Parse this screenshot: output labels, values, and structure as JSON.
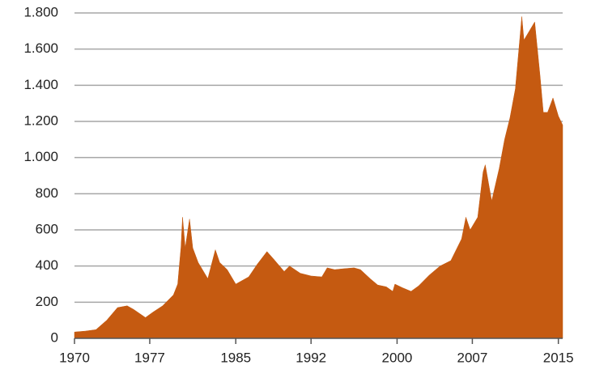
{
  "chart_data": {
    "type": "area",
    "color": "#c55a11",
    "grid": true,
    "x": [
      1970,
      1971,
      1972,
      1973,
      1974,
      1974.9,
      1975.5,
      1976.6,
      1977.3,
      1978.2,
      1979.2,
      1979.6,
      1979.9,
      1980.05,
      1980.3,
      1980.7,
      1981.0,
      1981.5,
      1982.4,
      1983.1,
      1983.5,
      1984.2,
      1985.0,
      1985.6,
      1986.2,
      1987.0,
      1987.9,
      1988.5,
      1989.5,
      1990.0,
      1991.0,
      1992.0,
      1993.0,
      1993.5,
      1994.2,
      1995.0,
      1996.0,
      1996.6,
      1997.5,
      1998.2,
      1999.0,
      1999.6,
      1999.8,
      2000.5,
      2001.3,
      2002.0,
      2003.0,
      2004.0,
      2005.0,
      2006.0,
      2006.4,
      2006.8,
      2007.5,
      2008.0,
      2008.2,
      2008.8,
      2009.5,
      2010.0,
      2010.5,
      2011.0,
      2011.6,
      2011.8,
      2012.3,
      2012.8,
      2013.3,
      2013.6,
      2014.0,
      2014.5,
      2015.0,
      2015.4
    ],
    "values": [
      35,
      40,
      48,
      100,
      170,
      180,
      160,
      115,
      145,
      180,
      240,
      300,
      500,
      670,
      500,
      660,
      500,
      420,
      330,
      490,
      420,
      380,
      300,
      320,
      340,
      410,
      480,
      440,
      370,
      400,
      360,
      345,
      340,
      390,
      380,
      385,
      390,
      380,
      330,
      295,
      285,
      260,
      300,
      280,
      260,
      290,
      350,
      400,
      430,
      550,
      670,
      600,
      670,
      920,
      960,
      760,
      940,
      1100,
      1220,
      1380,
      1780,
      1650,
      1700,
      1750,
      1450,
      1250,
      1250,
      1330,
      1230,
      1180
    ],
    "xlim": [
      1970,
      2015.4
    ],
    "xticks": [
      1970,
      1977,
      1985,
      1992,
      2000,
      2007,
      2015
    ],
    "ylim": [
      0,
      1800
    ],
    "yticks": [
      0,
      200,
      400,
      600,
      800,
      {
        "value": 1000,
        "label": "1.000"
      },
      {
        "value": 1200,
        "label": "1.200"
      },
      {
        "value": 1400,
        "label": "1.400"
      },
      {
        "value": 1600,
        "label": "1.600"
      },
      {
        "value": 1800,
        "label": "1.800"
      }
    ]
  }
}
